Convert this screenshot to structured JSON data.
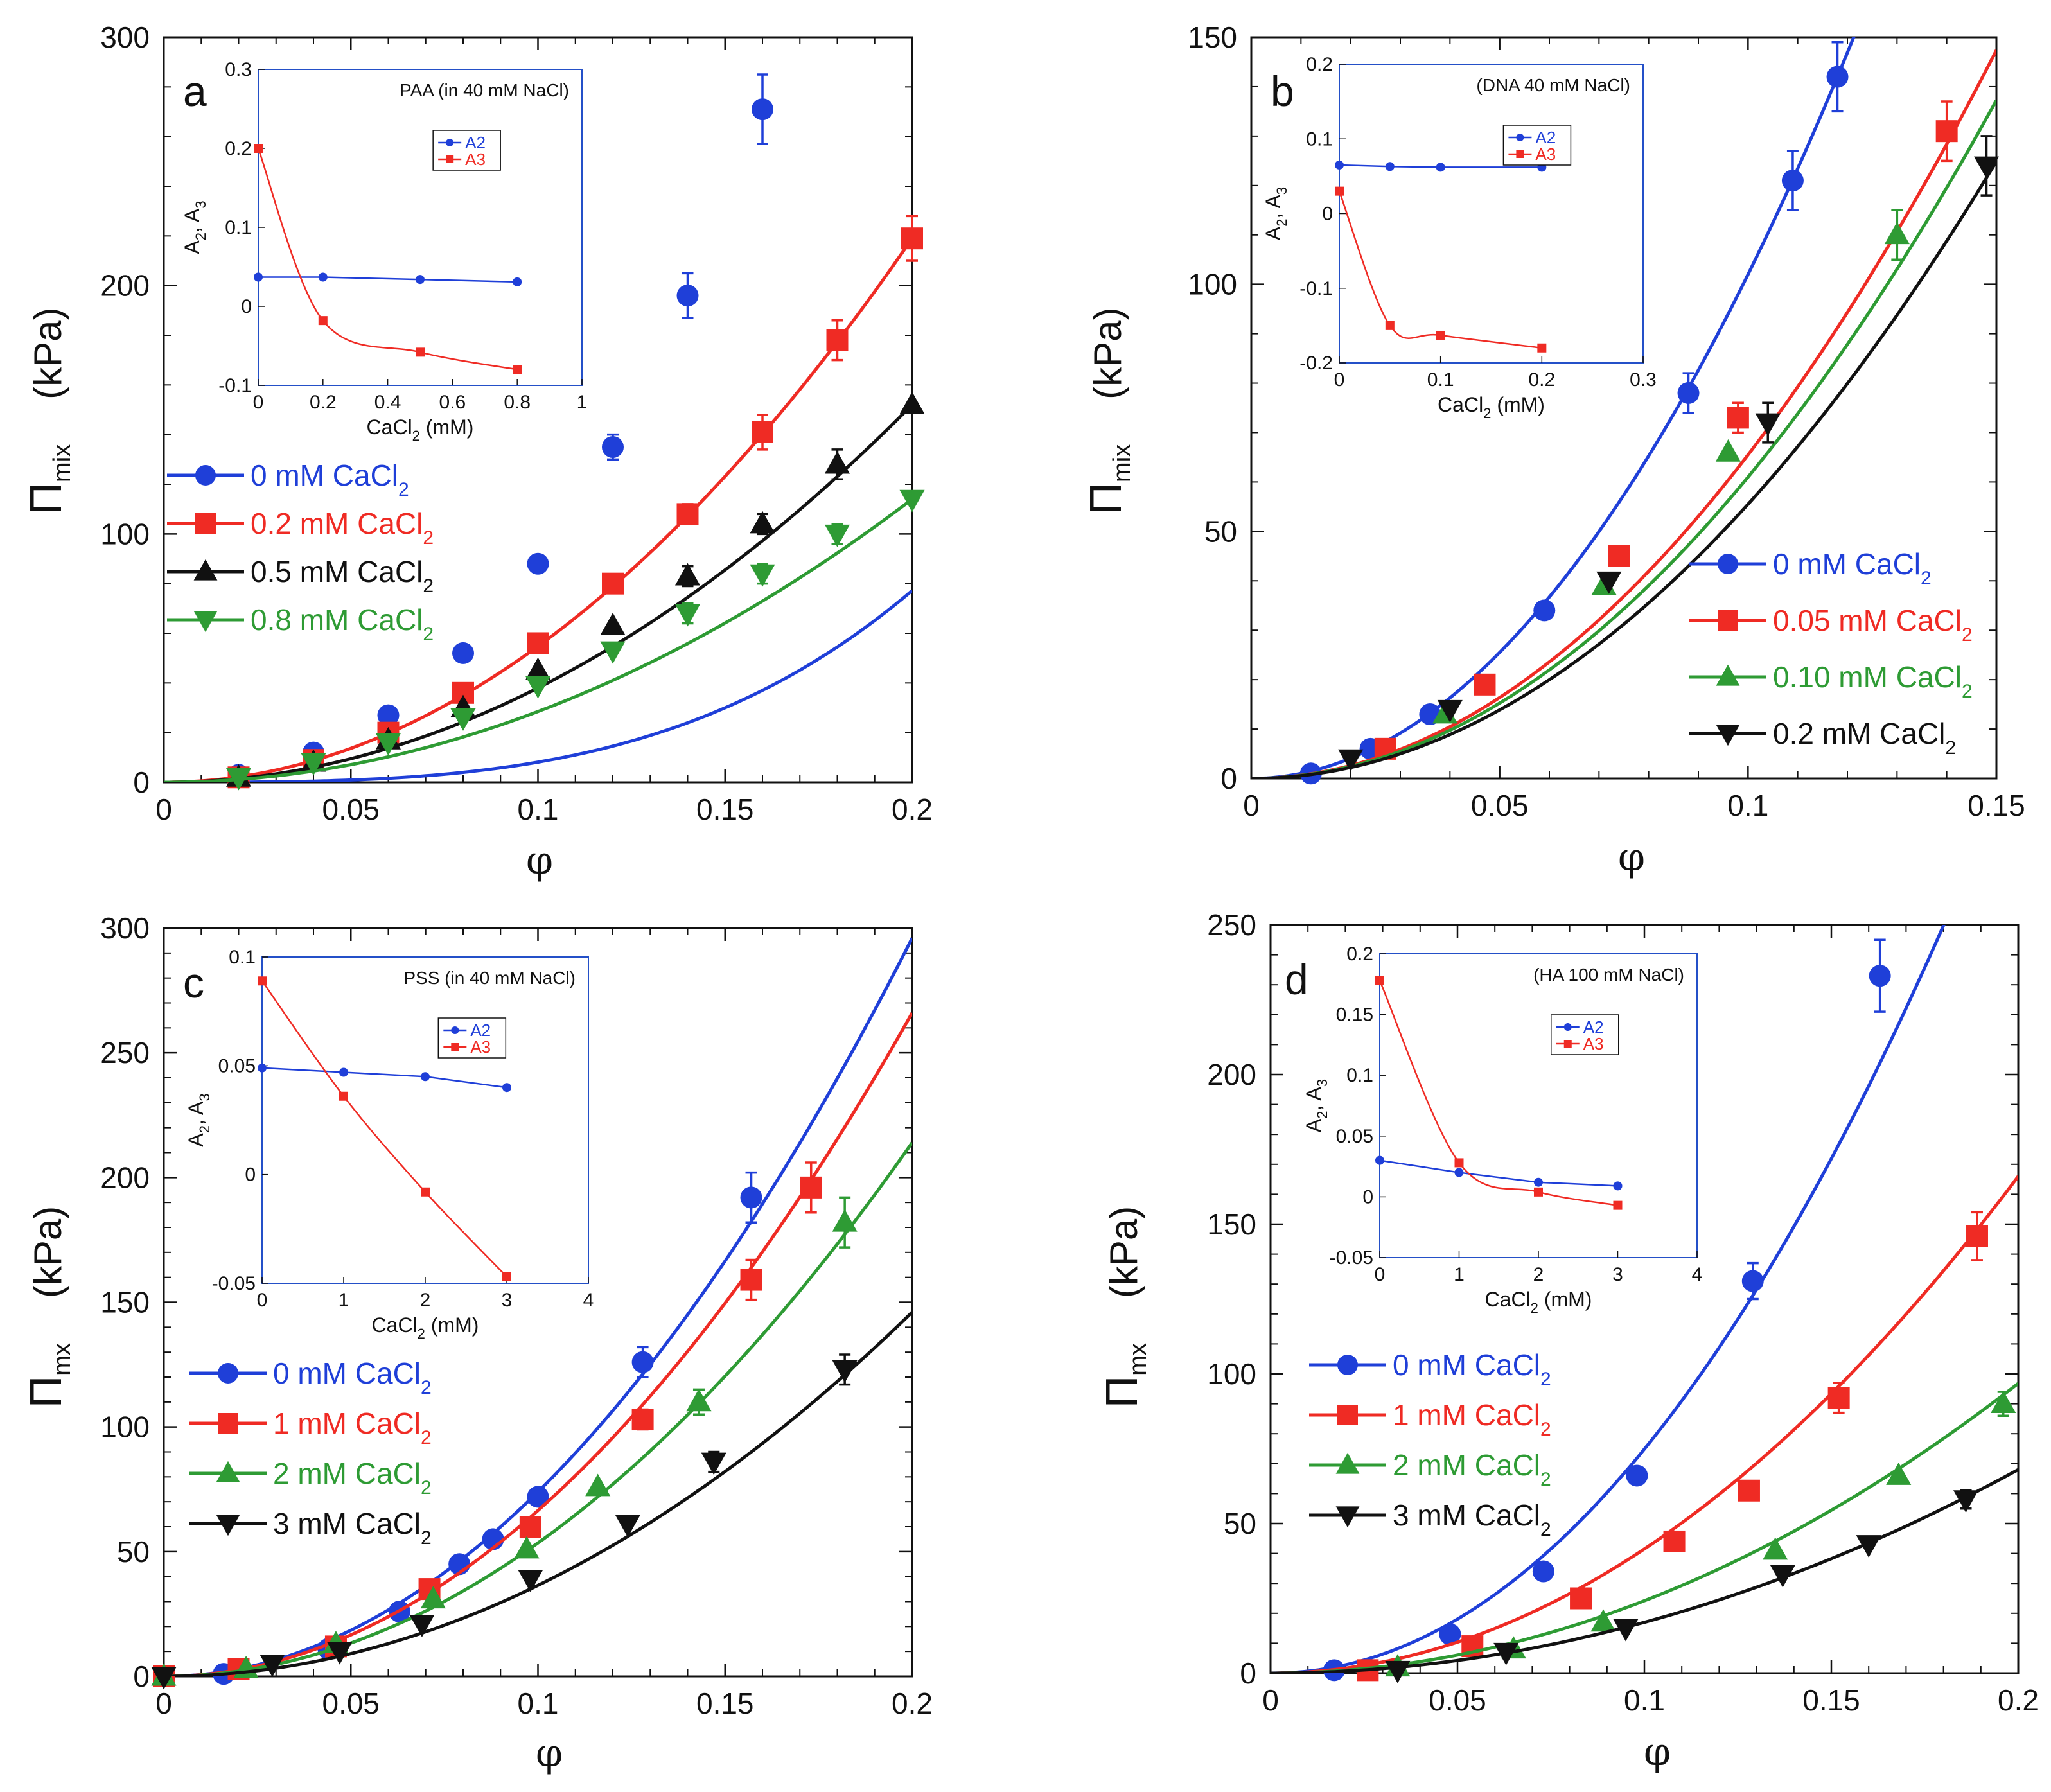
{
  "chart_data": [
    {
      "type": "line",
      "panel_label": "a",
      "ylabel": "Π",
      "ylabel_sub": "mix",
      "ylabel_unit": "(kPa)",
      "xlabel": "φ",
      "xlim": [
        0,
        0.2
      ],
      "ylim": [
        0,
        300
      ],
      "xticks": [
        0,
        0.05,
        0.1,
        0.15,
        0.2
      ],
      "xtick_labels": [
        "0",
        "0.05",
        "0.1",
        "0.15",
        "0.2"
      ],
      "yticks": [
        0,
        100,
        200,
        300
      ],
      "ytick_labels": [
        "0",
        "100",
        "200",
        "300"
      ],
      "legend_position": "middle-left",
      "series": [
        {
          "name": "0 mM CaCl",
          "sub": "2",
          "color": "#1f3fd8",
          "marker": "circle",
          "x": [
            0.02,
            0.04,
            0.06,
            0.08,
            0.1,
            0.12,
            0.14,
            0.16
          ],
          "y": [
            3,
            12,
            27,
            52,
            88,
            135,
            196,
            271
          ],
          "err": [
            0,
            0,
            0,
            0,
            0,
            5,
            9,
            14
          ],
          "fit_a": 6600,
          "fit_b": 3,
          "fit_c": 2.31
        },
        {
          "name": "0.2 mM CaCl",
          "sub": "2",
          "color": "#ef2b24",
          "marker": "square",
          "x": [
            0.02,
            0.04,
            0.06,
            0.08,
            0.1,
            0.12,
            0.14,
            0.16,
            0.18,
            0.2
          ],
          "y": [
            2,
            9,
            20,
            36,
            56,
            80,
            108,
            141,
            178,
            219
          ],
          "err": [
            0,
            0,
            0,
            0,
            0,
            0,
            4,
            7,
            8,
            9
          ],
          "fit_a": 5475,
          "fit_b": 2,
          "fit_c": 0
        },
        {
          "name": "0.5 mM CaCl",
          "sub": "2",
          "color": "#111111",
          "marker": "triangle-up",
          "x": [
            0.02,
            0.04,
            0.06,
            0.08,
            0.1,
            0.12,
            0.14,
            0.16,
            0.18,
            0.2
          ],
          "y": [
            2,
            8,
            17,
            30,
            45,
            63,
            83,
            104,
            128,
            152
          ],
          "err": [
            0,
            0,
            0,
            0,
            0,
            0,
            4,
            4,
            6,
            0
          ],
          "fit_a": 3800,
          "fit_b": 2,
          "fit_c": 0
        },
        {
          "name": "0.8 mM CaCl",
          "sub": "2",
          "color": "#2e9b34",
          "marker": "triangle-down",
          "x": [
            0.02,
            0.04,
            0.06,
            0.08,
            0.1,
            0.12,
            0.14,
            0.16,
            0.18,
            0.2
          ],
          "y": [
            2,
            8,
            16,
            26,
            39,
            53,
            68,
            84,
            100,
            114
          ],
          "err": [
            0,
            0,
            0,
            0,
            0,
            0,
            4,
            4,
            4,
            0
          ],
          "fit_a": 2850,
          "fit_b": 2,
          "fit_c": 0
        }
      ],
      "inset": {
        "title": "PAA (in 40 mM NaCl)",
        "xlabel": "CaCl",
        "xlabel_sub": "2",
        "xlabel_unit": " (mM)",
        "ylabel": "A",
        "ylabel_sub1": "2",
        "ylabel_mid": ", A",
        "ylabel_sub2": "3",
        "xlim": [
          0,
          1
        ],
        "ylim": [
          -0.1,
          0.3
        ],
        "xticks": [
          0,
          0.2,
          0.4,
          0.6,
          0.8,
          1
        ],
        "xtick_labels": [
          "0",
          "0.2",
          "0.4",
          "0.6",
          "0.8",
          "1"
        ],
        "yticks": [
          -0.1,
          0,
          0.1,
          0.2,
          0.3
        ],
        "ytick_labels": [
          "-0.1",
          "0",
          "0.1",
          "0.2",
          "0.3"
        ],
        "series": [
          {
            "name": "A2",
            "color": "#1f3fd8",
            "marker": "circle",
            "x": [
              0,
              0.2,
              0.5,
              0.8
            ],
            "y": [
              0.037,
              0.037,
              0.034,
              0.031
            ]
          },
          {
            "name": "A3",
            "color": "#ef2b24",
            "marker": "square",
            "x": [
              0,
              0.2,
              0.5,
              0.8
            ],
            "y": [
              0.2,
              -0.018,
              -0.058,
              -0.08
            ]
          }
        ]
      }
    },
    {
      "type": "line",
      "panel_label": "b",
      "ylabel": "Π",
      "ylabel_sub": "mix",
      "ylabel_unit": "(kPa)",
      "xlabel": "φ",
      "xlim": [
        0,
        0.15
      ],
      "ylim": [
        0,
        150
      ],
      "xticks": [
        0,
        0.05,
        0.1,
        0.15
      ],
      "xtick_labels": [
        "0",
        "0.05",
        "0.1",
        "0.15"
      ],
      "yticks": [
        0,
        50,
        100,
        150
      ],
      "ytick_labels": [
        "0",
        "50",
        "100",
        "150"
      ],
      "legend_position": "bottom-right",
      "series": [
        {
          "name": "0 mM CaCl",
          "sub": "2",
          "color": "#1f3fd8",
          "marker": "circle",
          "x": [
            0.012,
            0.024,
            0.036,
            0.059,
            0.088,
            0.109,
            0.118
          ],
          "y": [
            1,
            6,
            13,
            34,
            78,
            121,
            142
          ],
          "err": [
            0,
            0,
            0,
            0,
            4,
            6,
            7
          ],
          "fit_a": 10200,
          "fit_b": 2,
          "fit_c": 0
        },
        {
          "name": "0.05 mM CaCl",
          "sub": "2",
          "color": "#ef2b24",
          "marker": "square",
          "x": [
            0.027,
            0.047,
            0.074,
            0.098,
            0.14
          ],
          "y": [
            6,
            19,
            45,
            73,
            131
          ],
          "err": [
            0,
            0,
            0,
            3,
            6
          ],
          "fit_a": 6550,
          "fit_b": 2,
          "fit_c": 0
        },
        {
          "name": "0.10 mM CaCl",
          "sub": "2",
          "color": "#2e9b34",
          "marker": "triangle-up",
          "x": [
            0.039,
            0.071,
            0.096,
            0.13
          ],
          "y": [
            13,
            39,
            66,
            110
          ],
          "err": [
            0,
            0,
            0,
            5
          ],
          "fit_a": 6100,
          "fit_b": 2,
          "fit_c": 0
        },
        {
          "name": "0.2 mM CaCl",
          "sub": "2",
          "color": "#111111",
          "marker": "triangle-down",
          "x": [
            0.02,
            0.04,
            0.072,
            0.104,
            0.148
          ],
          "y": [
            4,
            14,
            40,
            72,
            124
          ],
          "err": [
            0,
            0,
            0,
            4,
            6
          ],
          "fit_a": 5550,
          "fit_b": 2,
          "fit_c": 0
        }
      ],
      "inset": {
        "title": "(DNA 40 mM NaCl)",
        "xlabel": "CaCl",
        "xlabel_sub": "2",
        "xlabel_unit": " (mM)",
        "ylabel": "A",
        "ylabel_sub1": "2",
        "ylabel_mid": ", A",
        "ylabel_sub2": "3",
        "xlim": [
          0,
          0.3
        ],
        "ylim": [
          -0.2,
          0.2
        ],
        "xticks": [
          0,
          0.1,
          0.2,
          0.3
        ],
        "xtick_labels": [
          "0",
          "0.1",
          "0.2",
          "0.3"
        ],
        "yticks": [
          -0.2,
          -0.1,
          0,
          0.1,
          0.2
        ],
        "ytick_labels": [
          "-0.2",
          "-0.1",
          "0",
          "0.1",
          "0.2"
        ],
        "series": [
          {
            "name": "A2",
            "color": "#1f3fd8",
            "marker": "circle",
            "x": [
              0,
              0.05,
              0.1,
              0.2
            ],
            "y": [
              0.065,
              0.063,
              0.062,
              0.062
            ]
          },
          {
            "name": "A3",
            "color": "#ef2b24",
            "marker": "square",
            "x": [
              0,
              0.05,
              0.1,
              0.2
            ],
            "y": [
              0.03,
              -0.15,
              -0.163,
              -0.18
            ]
          }
        ]
      }
    },
    {
      "type": "line",
      "panel_label": "c",
      "ylabel": "Π",
      "ylabel_sub": "mx",
      "ylabel_unit": "(kPa)",
      "xlabel": "φ",
      "xlim": [
        0,
        0.2
      ],
      "ylim": [
        0,
        300
      ],
      "xticks": [
        0,
        0.05,
        0.1,
        0.15,
        0.2
      ],
      "xtick_labels": [
        "0",
        "0.05",
        "0.1",
        "0.15",
        "0.2"
      ],
      "yticks": [
        0,
        50,
        100,
        150,
        200,
        250,
        300
      ],
      "ytick_labels": [
        "0",
        "50",
        "100",
        "150",
        "200",
        "250",
        "300"
      ],
      "legend_position": "bottom-left",
      "series": [
        {
          "name": "0 mM CaCl",
          "sub": "2",
          "color": "#1f3fd8",
          "marker": "circle",
          "x": [
            0,
            0.016,
            0.044,
            0.063,
            0.079,
            0.088,
            0.1,
            0.128,
            0.157
          ],
          "y": [
            0,
            1,
            11,
            26,
            45,
            55,
            72,
            126,
            192
          ],
          "err": [
            0,
            0,
            0,
            0,
            0,
            0,
            0,
            6,
            10
          ],
          "fit_a": 7400,
          "fit_b": 2,
          "fit_c": 0
        },
        {
          "name": "1 mM CaCl",
          "sub": "2",
          "color": "#ef2b24",
          "marker": "square",
          "x": [
            0,
            0.02,
            0.046,
            0.071,
            0.098,
            0.128,
            0.157,
            0.173
          ],
          "y": [
            0,
            3,
            12,
            35,
            60,
            103,
            159,
            196
          ],
          "err": [
            0,
            0,
            0,
            0,
            0,
            4,
            8,
            10
          ],
          "fit_a": 6650,
          "fit_b": 2,
          "fit_c": 0
        },
        {
          "name": "2 mM CaCl",
          "sub": "2",
          "color": "#2e9b34",
          "marker": "triangle-up",
          "x": [
            0,
            0.022,
            0.046,
            0.072,
            0.097,
            0.116,
            0.143,
            0.182
          ],
          "y": [
            0,
            3,
            13,
            31,
            51,
            76,
            110,
            182
          ],
          "err": [
            0,
            0,
            0,
            0,
            0,
            0,
            5,
            10
          ],
          "fit_a": 5350,
          "fit_b": 2,
          "fit_c": 0
        },
        {
          "name": "3 mM CaCl",
          "sub": "2",
          "color": "#111111",
          "marker": "triangle-down",
          "x": [
            0,
            0.029,
            0.047,
            0.069,
            0.098,
            0.124,
            0.147,
            0.182
          ],
          "y": [
            0,
            5,
            10,
            21,
            39,
            61,
            86,
            123
          ],
          "err": [
            0,
            0,
            0,
            0,
            0,
            0,
            4,
            6
          ],
          "fit_a": 3650,
          "fit_b": 2,
          "fit_c": 0
        }
      ],
      "inset": {
        "title": "PSS (in 40 mM NaCl)",
        "xlabel": "CaCl",
        "xlabel_sub": "2",
        "xlabel_unit": " (mM)",
        "ylabel": "A",
        "ylabel_sub1": "2",
        "ylabel_mid": ", A",
        "ylabel_sub2": "3",
        "xlim": [
          0,
          4
        ],
        "ylim": [
          -0.05,
          0.1
        ],
        "xticks": [
          0,
          1,
          2,
          3,
          4
        ],
        "xtick_labels": [
          "0",
          "1",
          "2",
          "3",
          "4"
        ],
        "yticks": [
          -0.05,
          0,
          0.05,
          0.1
        ],
        "ytick_labels": [
          "-0.05",
          "0",
          "0.05",
          "0.1"
        ],
        "series": [
          {
            "name": "A2",
            "color": "#1f3fd8",
            "marker": "circle",
            "x": [
              0,
              1,
              2,
              3
            ],
            "y": [
              0.049,
              0.047,
              0.045,
              0.04
            ]
          },
          {
            "name": "A3",
            "color": "#ef2b24",
            "marker": "square",
            "x": [
              0,
              1,
              2,
              3
            ],
            "y": [
              0.089,
              0.036,
              -0.008,
              -0.047
            ]
          }
        ]
      }
    },
    {
      "type": "line",
      "panel_label": "d",
      "ylabel": "Π",
      "ylabel_sub": "mx",
      "ylabel_unit": "(kPa)",
      "xlabel": "φ",
      "xlim": [
        0,
        0.2
      ],
      "ylim": [
        0,
        250
      ],
      "xticks": [
        0,
        0.05,
        0.1,
        0.15,
        0.2
      ],
      "xtick_labels": [
        "0",
        "0.05",
        "0.1",
        "0.15",
        "0.2"
      ],
      "yticks": [
        0,
        50,
        100,
        150,
        200,
        250
      ],
      "ytick_labels": [
        "0",
        "50",
        "100",
        "150",
        "200",
        "250"
      ],
      "legend_position": "middle-left",
      "series": [
        {
          "name": "0 mM CaCl",
          "sub": "2",
          "color": "#1f3fd8",
          "marker": "circle",
          "x": [
            0.017,
            0.048,
            0.073,
            0.098,
            0.129,
            0.163
          ],
          "y": [
            1,
            13,
            34,
            66,
            131,
            233
          ],
          "err": [
            0,
            0,
            0,
            0,
            6,
            12
          ],
          "fit_a": 8400,
          "fit_b": 2.05,
          "fit_c": 0
        },
        {
          "name": "1 mM CaCl",
          "sub": "2",
          "color": "#ef2b24",
          "marker": "square",
          "x": [
            0.026,
            0.054,
            0.083,
            0.108,
            0.128,
            0.152,
            0.189
          ],
          "y": [
            1,
            9,
            25,
            44,
            61,
            92,
            146
          ],
          "err": [
            0,
            0,
            0,
            0,
            0,
            5,
            8
          ],
          "fit_a": 4150,
          "fit_b": 2,
          "fit_c": 0
        },
        {
          "name": "2 mM CaCl",
          "sub": "2",
          "color": "#2e9b34",
          "marker": "triangle-up",
          "x": [
            0.034,
            0.065,
            0.089,
            0.135,
            0.168,
            0.196
          ],
          "y": [
            2,
            8,
            17,
            41,
            66,
            90
          ],
          "err": [
            0,
            0,
            0,
            0,
            0,
            4
          ],
          "fit_a": 2420,
          "fit_b": 2,
          "fit_c": 0
        },
        {
          "name": "3 mM CaCl",
          "sub": "2",
          "color": "#111111",
          "marker": "triangle-down",
          "x": [
            0.034,
            0.063,
            0.095,
            0.137,
            0.16,
            0.186
          ],
          "y": [
            1,
            7,
            15,
            33,
            43,
            58
          ],
          "err": [
            0,
            0,
            0,
            0,
            0,
            3
          ],
          "fit_a": 1700,
          "fit_b": 2,
          "fit_c": 0
        }
      ],
      "inset": {
        "title": "(HA 100 mM NaCl)",
        "xlabel": "CaCl",
        "xlabel_sub": "2",
        "xlabel_unit": " (mM)",
        "ylabel": "A",
        "ylabel_sub1": "2",
        "ylabel_mid": ", A",
        "ylabel_sub2": "3",
        "xlim": [
          0,
          4
        ],
        "ylim": [
          -0.05,
          0.2
        ],
        "xticks": [
          0,
          1,
          2,
          3,
          4
        ],
        "xtick_labels": [
          "0",
          "1",
          "2",
          "3",
          "4"
        ],
        "yticks": [
          -0.05,
          0,
          0.05,
          0.1,
          0.15,
          0.2
        ],
        "ytick_labels": [
          "-0.05",
          "0",
          "0.05",
          "0.1",
          "0.15",
          "0.2"
        ],
        "series": [
          {
            "name": "A2",
            "color": "#1f3fd8",
            "marker": "circle",
            "x": [
              0,
              1,
              2,
              3
            ],
            "y": [
              0.03,
              0.02,
              0.012,
              0.009
            ]
          },
          {
            "name": "A3",
            "color": "#ef2b24",
            "marker": "square",
            "x": [
              0,
              1,
              2,
              3
            ],
            "y": [
              0.178,
              0.028,
              0.004,
              -0.007
            ]
          }
        ]
      }
    }
  ]
}
